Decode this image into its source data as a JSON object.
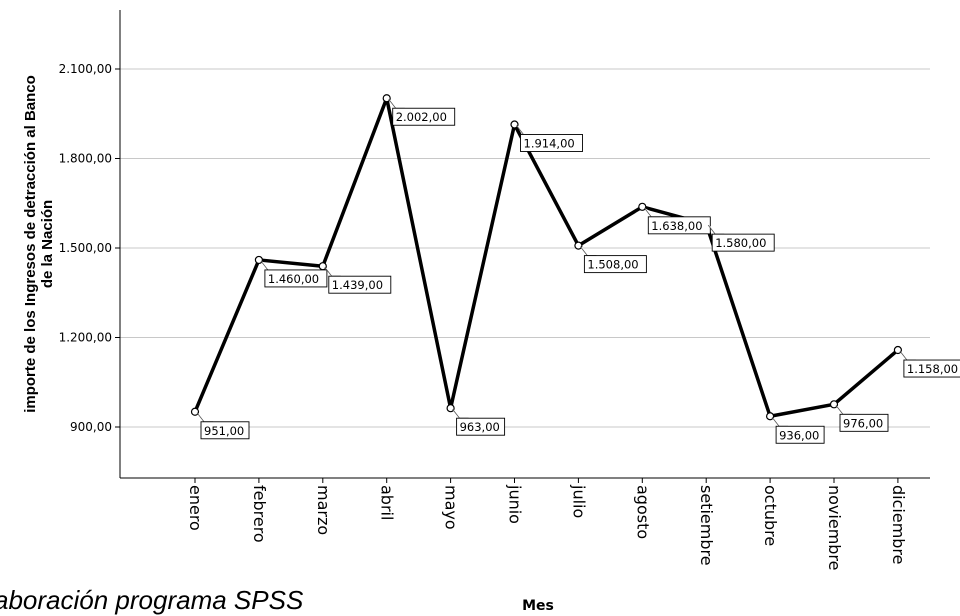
{
  "chart_data": {
    "type": "line",
    "title": "",
    "xlabel": "Mes",
    "ylabel": [
      "importe de los Ingresos de detracción al Banco",
      "de la Nación"
    ],
    "ylim": [
      750,
      2200
    ],
    "yticks": [
      900,
      1200,
      1500,
      1800,
      2100
    ],
    "ytick_labels": [
      "900,00",
      "1.200,00",
      "1.500,00",
      "1.800,00",
      "2.100,00"
    ],
    "grid": "horizontal",
    "categories": [
      "enero",
      "febrero",
      "marzo",
      "abril",
      "mayo",
      "junio",
      "julio",
      "agosto",
      "setiembre",
      "octubre",
      "noviembre",
      "diciembre"
    ],
    "series": [
      {
        "values": [
          951,
          1460,
          1439,
          2002,
          963,
          1914,
          1508,
          1638,
          1580,
          936,
          976,
          1158
        ],
        "labels": [
          "951,00",
          "1.460,00",
          "1.439,00",
          "2.002,00",
          "963,00",
          "1.914,00",
          "1.508,00",
          "1.638,00",
          "1.580,00",
          "936,00",
          "976,00",
          "1.158,00"
        ],
        "color": "#000000"
      }
    ]
  },
  "footnote": "aboración programa SPSS"
}
